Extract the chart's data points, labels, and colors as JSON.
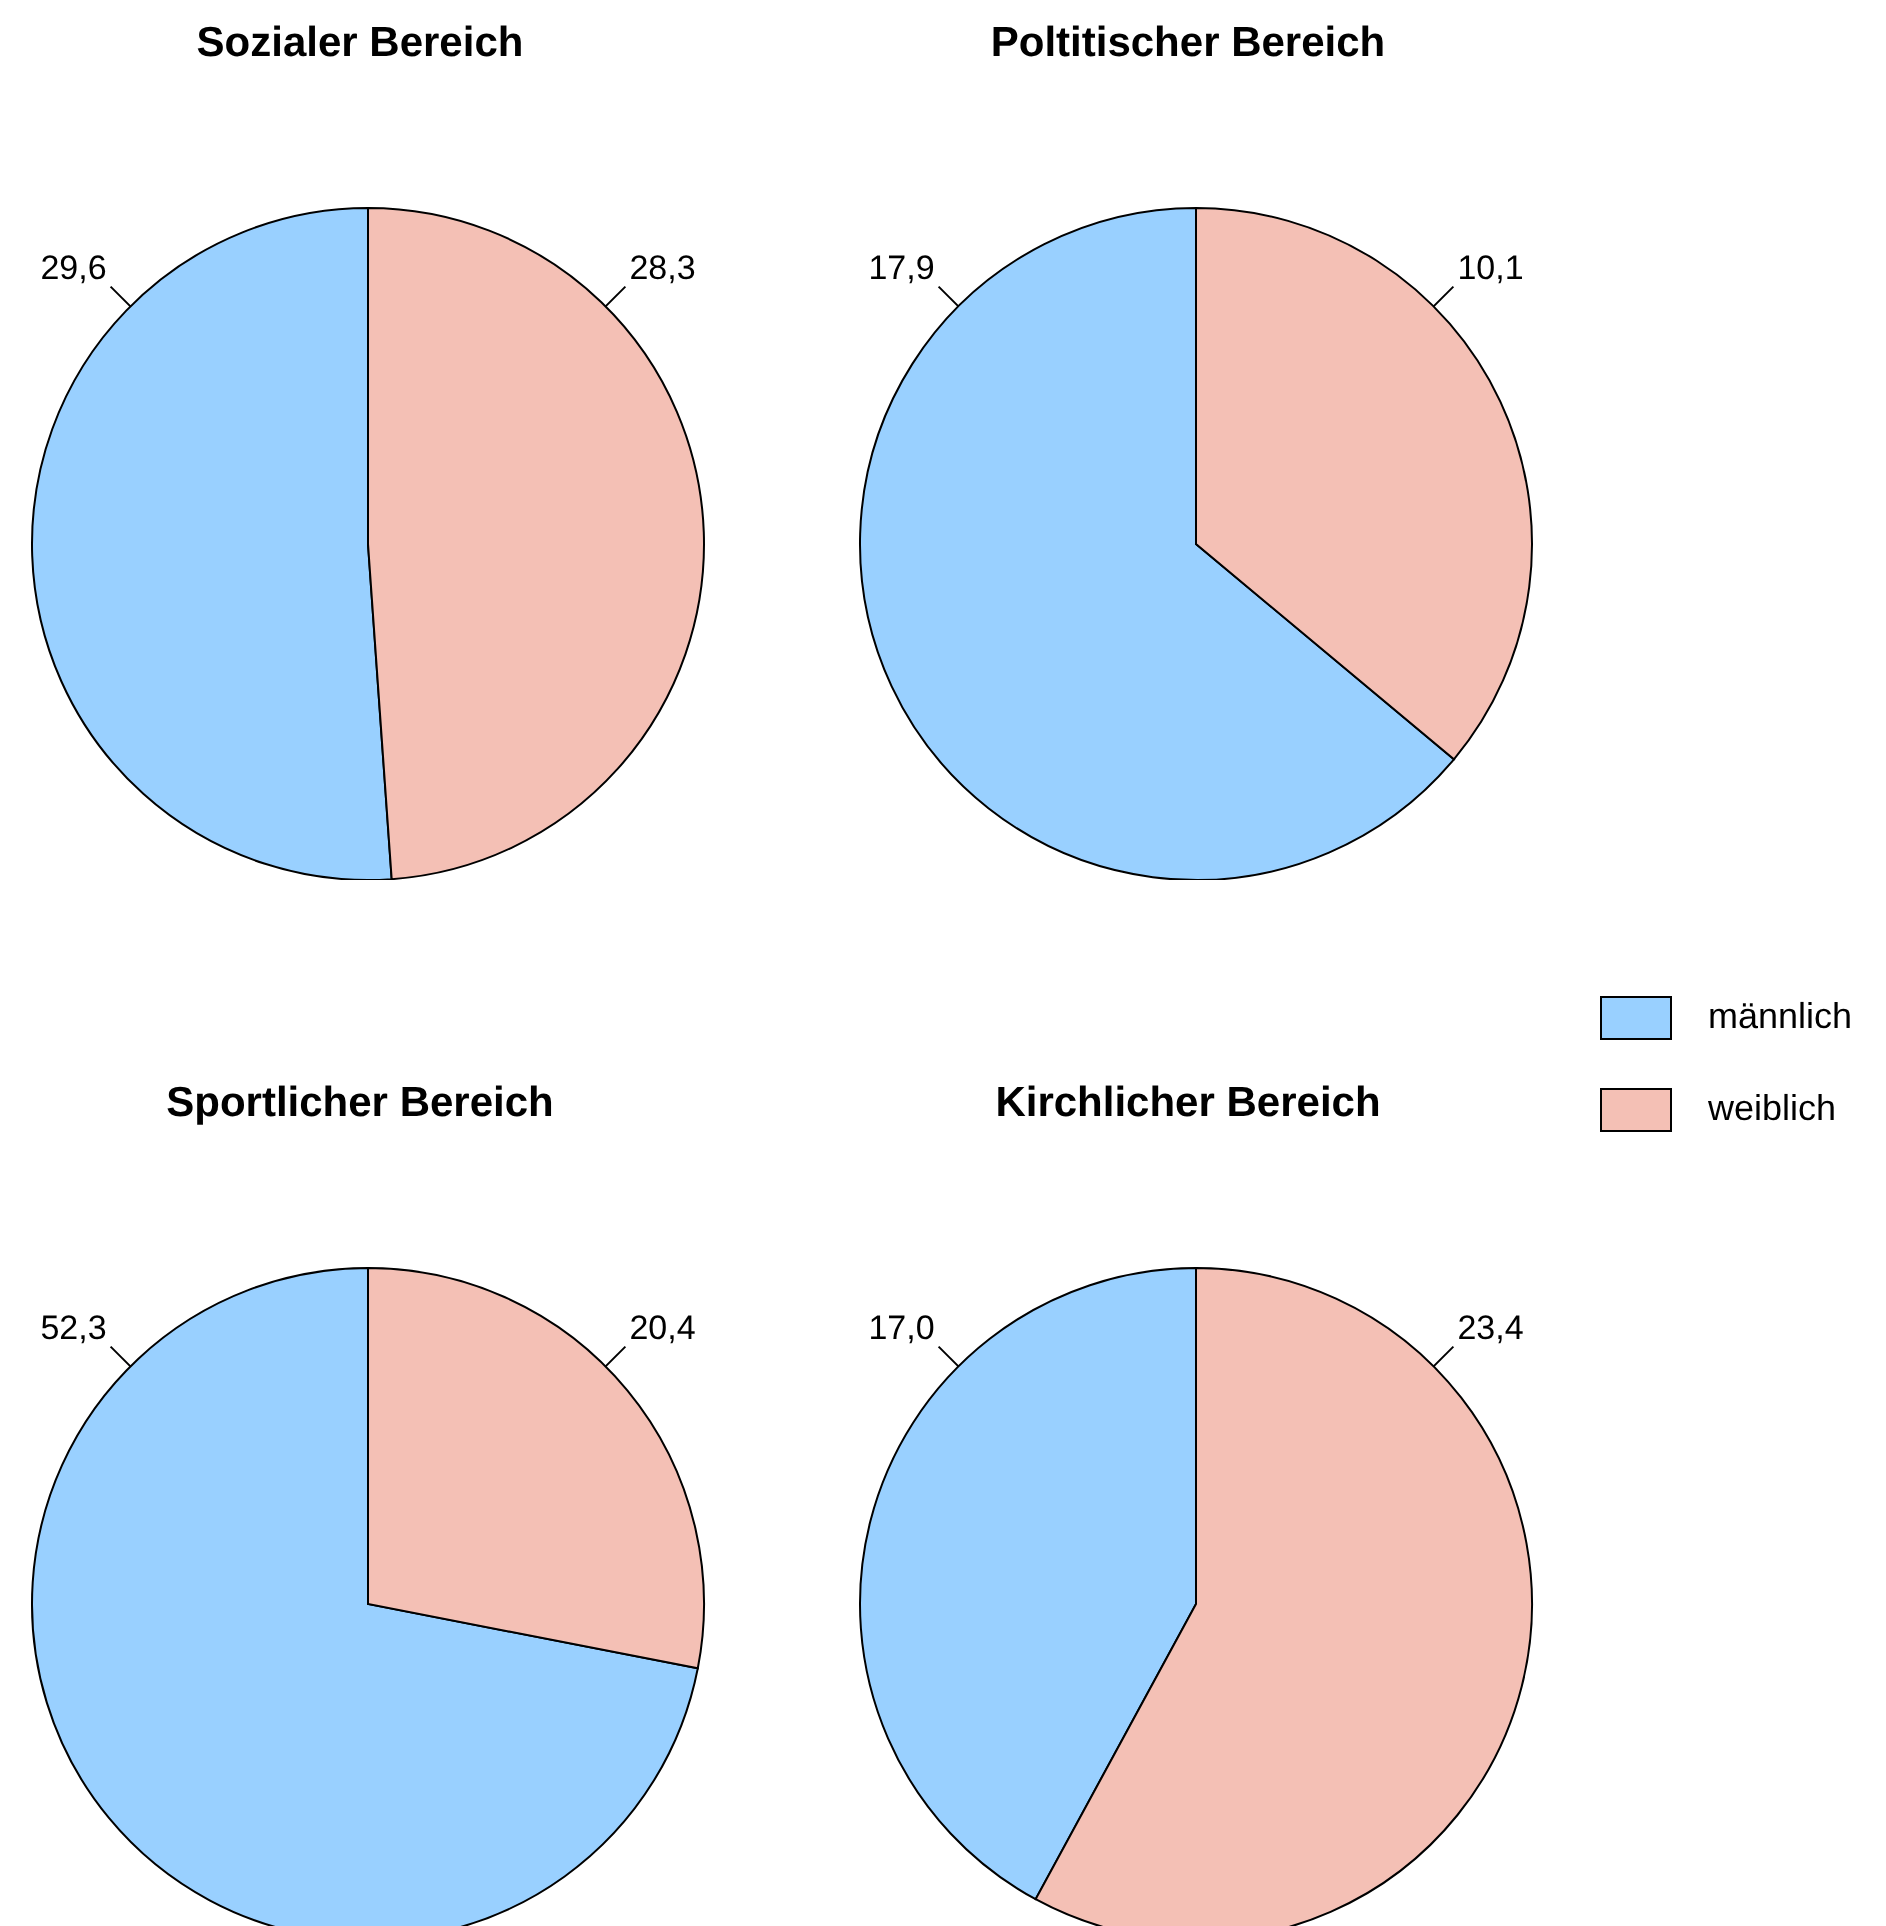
{
  "chart_data": [
    {
      "type": "pie",
      "title": "Sozialer Bereich",
      "categories": [
        null,
        null
      ],
      "values": [
        29.6,
        28.3
      ],
      "value_labels": [
        "29,6",
        "28,3"
      ],
      "colors": [
        "#99d0ff",
        "#f4c0b5"
      ]
    },
    {
      "type": "pie",
      "title": "Poltitischer Bereich",
      "categories": [
        "männlich",
        "weiblich"
      ],
      "values": [
        17.9,
        10.1
      ],
      "value_labels": [
        "17,9",
        "10,1"
      ],
      "colors": [
        "#99d0ff",
        "#f4c0b5"
      ],
      "legend": "right"
    },
    {
      "type": "pie",
      "title": "Sportlicher Bereich",
      "categories": [
        null,
        null
      ],
      "values": [
        52.3,
        20.4
      ],
      "value_labels": [
        "52,3",
        "20,4"
      ],
      "colors": [
        "#99d0ff",
        "#f4c0b5"
      ]
    },
    {
      "type": "pie",
      "title": "Kirchlicher Bereich",
      "categories": [
        null,
        null
      ],
      "values": [
        17.0,
        23.4
      ],
      "value_labels": [
        "17,0",
        "23,4"
      ],
      "colors": [
        "#99d0ff",
        "#f4c0b5"
      ]
    }
  ]
}
